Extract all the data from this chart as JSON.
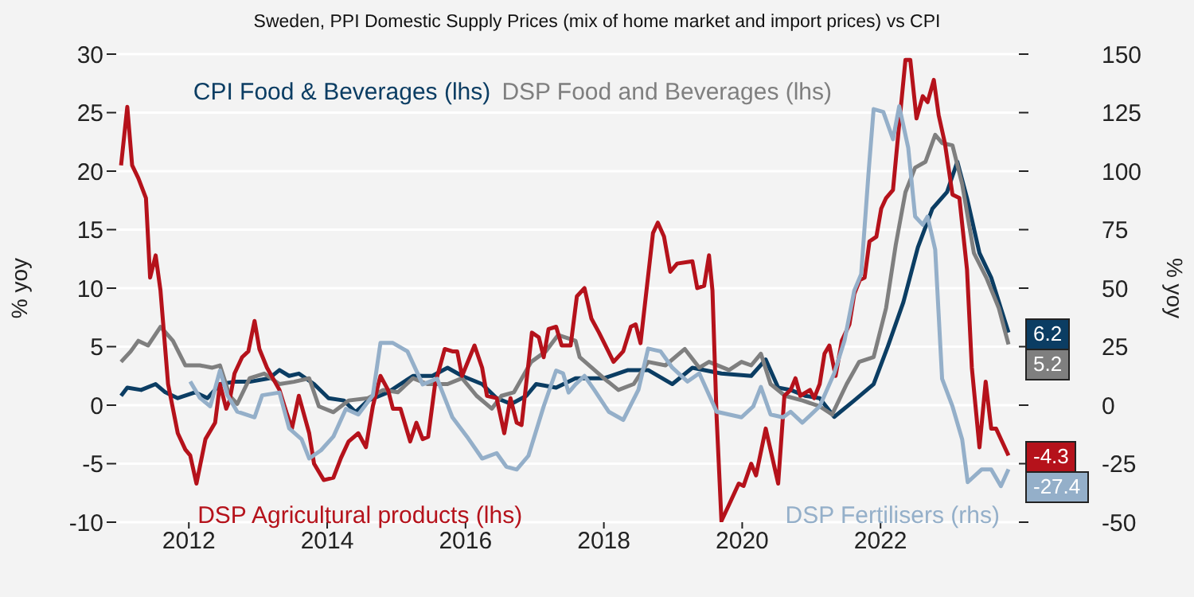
{
  "chart_data": {
    "type": "line",
    "title": "Sweden, PPI Domestic Supply Prices (mix of home market and import prices) vs CPI",
    "ylabel": "% yoy",
    "y2label": "% yoy",
    "xlim": [
      2010.95,
      2024.0
    ],
    "xticks": [
      2012,
      2014,
      2016,
      2018,
      2020,
      2022
    ],
    "ylim": [
      -10,
      30
    ],
    "yticks": [
      -10,
      -5,
      0,
      5,
      10,
      15,
      20,
      25,
      30
    ],
    "y2lim": [
      -50,
      150
    ],
    "y2ticks": [
      -50,
      -25,
      0,
      25,
      50,
      75,
      100,
      125,
      150
    ],
    "grid": "y",
    "series": [
      {
        "name": "CPI Food & Beverages (lhs)",
        "color": "#0b3d63",
        "x": [
          2011.02,
          2011.11,
          2011.31,
          2011.52,
          2011.66,
          2011.84,
          2012.09,
          2012.27,
          2012.45,
          2012.66,
          2012.88,
          2013.16,
          2013.31,
          2013.45,
          2013.59,
          2013.81,
          2014.02,
          2014.24,
          2014.41,
          2014.59,
          2014.88,
          2015.24,
          2015.52,
          2015.74,
          2015.95,
          2016.24,
          2016.45,
          2016.66,
          2016.88,
          2017.02,
          2017.31,
          2017.59,
          2018.0,
          2018.35,
          2018.64,
          2018.99,
          2019.28,
          2019.7,
          2020.13,
          2020.34,
          2020.52,
          2020.7,
          2020.91,
          2021.12,
          2021.33,
          2021.62,
          2021.9,
          2022.11,
          2022.33,
          2022.54,
          2022.75,
          2022.96,
          2023.11,
          2023.25,
          2023.43,
          2023.6,
          2023.85
        ],
        "values": [
          0.8,
          1.5,
          1.3,
          1.8,
          1.1,
          0.6,
          1.1,
          0.6,
          1.8,
          2.0,
          2.0,
          2.3,
          3.0,
          2.5,
          2.7,
          1.8,
          0.6,
          0.4,
          -0.6,
          0.4,
          1.1,
          2.5,
          2.5,
          3.2,
          2.5,
          1.8,
          0.6,
          0.1,
          0.8,
          1.8,
          1.5,
          2.3,
          2.3,
          3.0,
          3.0,
          1.8,
          3.2,
          2.7,
          2.5,
          3.9,
          1.5,
          1.3,
          0.8,
          0.6,
          -1.0,
          0.4,
          1.8,
          5.1,
          8.8,
          13.5,
          16.8,
          18.2,
          20.8,
          17.7,
          13.0,
          10.9,
          6.2
        ],
        "value_labels": [
          null,
          null,
          null,
          null,
          null,
          null,
          null,
          null,
          null,
          null,
          null,
          null,
          null,
          null,
          null,
          null,
          null,
          null,
          null,
          null,
          null,
          null,
          null,
          null,
          null,
          null,
          null,
          null,
          null,
          null,
          null,
          null,
          null,
          null,
          null,
          null,
          null,
          null,
          null,
          null,
          null,
          null,
          null,
          null,
          null,
          null,
          null,
          null,
          null,
          null,
          null,
          null,
          null,
          null,
          null,
          null,
          "6.2"
        ]
      },
      {
        "name": "DSP Food and Beverages (lhs)",
        "color": "#7f7f7f",
        "x": [
          2011.02,
          2011.16,
          2011.27,
          2011.41,
          2011.59,
          2011.77,
          2011.95,
          2012.16,
          2012.34,
          2012.45,
          2012.59,
          2012.7,
          2012.88,
          2013.09,
          2013.31,
          2013.52,
          2013.74,
          2013.88,
          2014.09,
          2014.31,
          2014.59,
          2014.81,
          2015.02,
          2015.24,
          2015.45,
          2015.74,
          2015.95,
          2016.16,
          2016.38,
          2016.52,
          2016.7,
          2016.95,
          2017.16,
          2017.34,
          2017.59,
          2017.65,
          2018.0,
          2018.21,
          2018.43,
          2018.64,
          2018.89,
          2019.17,
          2019.38,
          2019.52,
          2019.81,
          2019.99,
          2020.13,
          2020.27,
          2020.41,
          2020.62,
          2020.87,
          2021.12,
          2021.3,
          2021.51,
          2021.69,
          2021.9,
          2022.08,
          2022.22,
          2022.36,
          2022.5,
          2022.65,
          2022.79,
          2022.89,
          2023.04,
          2023.18,
          2023.35,
          2023.53,
          2023.71,
          2023.85
        ],
        "values": [
          3.7,
          4.6,
          5.5,
          5.1,
          6.7,
          5.5,
          3.4,
          3.4,
          3.2,
          3.4,
          0.8,
          0.1,
          2.3,
          2.7,
          1.8,
          2.0,
          2.3,
          -0.1,
          -0.6,
          0.4,
          0.6,
          1.3,
          1.1,
          2.3,
          1.8,
          1.8,
          2.3,
          0.8,
          -0.3,
          0.8,
          1.1,
          3.7,
          4.6,
          6.0,
          5.5,
          4.1,
          2.3,
          1.3,
          1.8,
          3.7,
          3.4,
          4.8,
          3.2,
          3.7,
          3.0,
          3.7,
          3.4,
          4.4,
          1.8,
          0.8,
          0.4,
          -0.1,
          -0.8,
          1.8,
          3.7,
          4.1,
          8.3,
          13.7,
          18.2,
          20.3,
          20.8,
          23.1,
          22.4,
          22.2,
          18.9,
          13.0,
          10.9,
          8.3,
          5.2
        ],
        "value_labels": [
          null,
          null,
          null,
          null,
          null,
          null,
          null,
          null,
          null,
          null,
          null,
          null,
          null,
          null,
          null,
          null,
          null,
          null,
          null,
          null,
          null,
          null,
          null,
          null,
          null,
          null,
          null,
          null,
          null,
          null,
          null,
          null,
          null,
          null,
          null,
          null,
          null,
          null,
          null,
          null,
          null,
          null,
          null,
          null,
          null,
          null,
          null,
          null,
          null,
          null,
          null,
          null,
          null,
          null,
          null,
          null,
          null,
          null,
          null,
          null,
          null,
          null,
          null,
          null,
          null,
          null,
          null,
          null,
          "5.2"
        ]
      },
      {
        "name": "DSP Agricultural products (lhs)",
        "color": "#b5121b",
        "x": [
          2011.02,
          2011.11,
          2011.18,
          2011.27,
          2011.38,
          2011.44,
          2011.52,
          2011.59,
          2011.7,
          2011.84,
          2011.95,
          2012.02,
          2012.11,
          2012.24,
          2012.38,
          2012.45,
          2012.54,
          2012.59,
          2012.66,
          2012.77,
          2012.86,
          2012.95,
          2013.02,
          2013.13,
          2013.31,
          2013.41,
          2013.49,
          2013.59,
          2013.74,
          2013.81,
          2013.95,
          2014.09,
          2014.2,
          2014.31,
          2014.45,
          2014.56,
          2014.66,
          2014.77,
          2014.88,
          2014.95,
          2015.06,
          2015.2,
          2015.29,
          2015.38,
          2015.46,
          2015.56,
          2015.7,
          2015.81,
          2015.88,
          2015.95,
          2016.13,
          2016.24,
          2016.31,
          2016.45,
          2016.56,
          2016.65,
          2016.74,
          2016.81,
          2016.96,
          2017.06,
          2017.13,
          2017.2,
          2017.31,
          2017.39,
          2017.52,
          2017.61,
          2017.72,
          2017.82,
          2017.93,
          2018.14,
          2018.28,
          2018.39,
          2018.46,
          2018.53,
          2018.71,
          2018.78,
          2018.87,
          2018.96,
          2019.06,
          2019.28,
          2019.35,
          2019.45,
          2019.52,
          2019.57,
          2019.63,
          2019.7,
          2019.81,
          2019.95,
          2020.02,
          2020.13,
          2020.2,
          2020.34,
          2020.52,
          2020.61,
          2020.7,
          2020.77,
          2020.84,
          2020.98,
          2021.04,
          2021.12,
          2021.19,
          2021.26,
          2021.35,
          2021.44,
          2021.55,
          2021.62,
          2021.7,
          2021.77,
          2021.84,
          2021.94,
          2022.01,
          2022.08,
          2022.18,
          2022.26,
          2022.36,
          2022.43,
          2022.52,
          2022.61,
          2022.68,
          2022.77,
          2022.84,
          2022.93,
          2023.04,
          2023.14,
          2023.25,
          2023.32,
          2023.43,
          2023.52,
          2023.6,
          2023.67,
          2023.85
        ],
        "values": [
          20.5,
          25.5,
          20.5,
          19.4,
          17.7,
          10.9,
          12.8,
          9.8,
          1.8,
          -2.4,
          -3.8,
          -4.3,
          -6.7,
          -2.9,
          -1.5,
          1.8,
          -0.3,
          0.4,
          2.7,
          4.1,
          4.6,
          7.2,
          4.8,
          3.2,
          1.3,
          -0.6,
          -2.0,
          0.8,
          -2.4,
          -5.0,
          -6.4,
          -6.2,
          -4.5,
          -3.1,
          -2.4,
          -3.6,
          -0.1,
          2.5,
          1.3,
          -0.3,
          -0.3,
          -3.1,
          -1.5,
          -2.9,
          -2.7,
          1.8,
          4.8,
          4.6,
          4.6,
          2.5,
          5.1,
          3.2,
          0.8,
          0.6,
          -2.4,
          0.6,
          -1.5,
          -1.7,
          6.2,
          5.8,
          4.1,
          6.5,
          6.7,
          5.1,
          5.1,
          9.3,
          10.0,
          7.4,
          6.2,
          3.7,
          4.6,
          6.7,
          6.9,
          5.3,
          14.7,
          15.6,
          14.4,
          11.4,
          12.1,
          12.3,
          10.0,
          10.2,
          12.8,
          9.8,
          -1.0,
          -9.9,
          -8.5,
          -6.7,
          -6.9,
          -5.0,
          -6.0,
          -2.0,
          -6.7,
          0.8,
          1.3,
          2.3,
          0.8,
          1.3,
          0.6,
          1.8,
          4.4,
          5.1,
          2.5,
          5.5,
          6.9,
          9.5,
          10.7,
          10.9,
          14.0,
          14.4,
          16.8,
          17.7,
          18.4,
          23.4,
          29.5,
          29.5,
          24.5,
          26.4,
          25.9,
          27.8,
          24.8,
          22.4,
          18.0,
          17.7,
          11.6,
          3.2,
          -3.6,
          2.0,
          -2.0,
          -2.0,
          -4.3
        ],
        "value_labels": [
          null,
          null,
          null,
          null,
          null,
          null,
          null,
          null,
          null,
          null,
          null,
          null,
          null,
          null,
          null,
          null,
          null,
          null,
          null,
          null,
          null,
          null,
          null,
          null,
          null,
          null,
          null,
          null,
          null,
          null,
          null,
          null,
          null,
          null,
          null,
          null,
          null,
          null,
          null,
          null,
          null,
          null,
          null,
          null,
          null,
          null,
          null,
          null,
          null,
          null,
          null,
          null,
          null,
          null,
          null,
          null,
          null,
          null,
          null,
          null,
          null,
          null,
          null,
          null,
          null,
          null,
          null,
          null,
          null,
          null,
          null,
          null,
          null,
          null,
          null,
          null,
          null,
          null,
          null,
          null,
          null,
          null,
          null,
          null,
          null,
          null,
          null,
          null,
          null,
          null,
          null,
          null,
          null,
          null,
          null,
          null,
          null,
          null,
          null,
          null,
          null,
          null,
          null,
          null,
          null,
          null,
          null,
          null,
          null,
          null,
          null,
          null,
          null,
          null,
          null,
          null,
          null,
          null,
          null,
          null,
          null,
          null,
          null,
          null,
          null,
          null,
          null,
          null,
          null,
          null,
          "-4.3"
        ]
      },
      {
        "name": "DSP Fertilisers (rhs)",
        "color": "#94afc9",
        "axis": "y2",
        "x": [
          2012.02,
          2012.16,
          2012.31,
          2012.45,
          2012.56,
          2012.7,
          2012.95,
          2013.06,
          2013.31,
          2013.45,
          2013.63,
          2013.74,
          2013.91,
          2014.09,
          2014.27,
          2014.45,
          2014.66,
          2014.77,
          2014.95,
          2015.16,
          2015.38,
          2015.59,
          2015.81,
          2016.02,
          2016.24,
          2016.45,
          2016.59,
          2016.74,
          2016.91,
          2017.13,
          2017.31,
          2017.41,
          2017.49,
          2017.59,
          2017.72,
          2017.86,
          2018.07,
          2018.28,
          2018.5,
          2018.64,
          2018.82,
          2018.99,
          2019.21,
          2019.38,
          2019.63,
          2019.99,
          2020.16,
          2020.27,
          2020.41,
          2020.59,
          2020.7,
          2020.87,
          2021.12,
          2021.33,
          2021.48,
          2021.62,
          2021.72,
          2021.83,
          2021.9,
          2022.04,
          2022.18,
          2022.27,
          2022.4,
          2022.5,
          2022.61,
          2022.68,
          2022.79,
          2022.89,
          2023.04,
          2023.18,
          2023.26,
          2023.46,
          2023.6,
          2023.74,
          2023.85
        ],
        "values": [
          10.1,
          3.1,
          -0.5,
          14.8,
          4.2,
          -2.8,
          -5.2,
          4.2,
          5.4,
          -9.9,
          -14.6,
          -22.8,
          -19.3,
          -13.4,
          -1.6,
          -4.0,
          4.2,
          26.6,
          26.6,
          23.0,
          8.9,
          11.3,
          -5.2,
          -13.4,
          -22.8,
          -20.5,
          -26.3,
          -27.5,
          -21.6,
          -0.5,
          14.8,
          13.6,
          5.4,
          8.9,
          12.5,
          6.6,
          -2.8,
          -6.3,
          6.6,
          24.2,
          23.0,
          16.0,
          10.1,
          13.6,
          -2.8,
          -5.2,
          -0.5,
          7.8,
          -4.0,
          -5.2,
          -2.8,
          -7.5,
          -0.5,
          13.6,
          27.7,
          48.9,
          56.0,
          100.6,
          126.5,
          125.3,
          113.6,
          127.7,
          110.0,
          80.6,
          77.1,
          80.6,
          66.5,
          11.3,
          -0.5,
          -14.6,
          -32.9,
          -27.5,
          -27.5,
          -34.6,
          -27.4
        ],
        "value_labels": [
          null,
          null,
          null,
          null,
          null,
          null,
          null,
          null,
          null,
          null,
          null,
          null,
          null,
          null,
          null,
          null,
          null,
          null,
          null,
          null,
          null,
          null,
          null,
          null,
          null,
          null,
          null,
          null,
          null,
          null,
          null,
          null,
          null,
          null,
          null,
          null,
          null,
          null,
          null,
          null,
          null,
          null,
          null,
          null,
          null,
          null,
          null,
          null,
          null,
          null,
          null,
          null,
          null,
          null,
          null,
          null,
          null,
          null,
          null,
          null,
          null,
          null,
          null,
          null,
          null,
          null,
          null,
          null,
          null,
          null,
          null,
          null,
          null,
          null,
          "-27.4"
        ]
      }
    ]
  }
}
